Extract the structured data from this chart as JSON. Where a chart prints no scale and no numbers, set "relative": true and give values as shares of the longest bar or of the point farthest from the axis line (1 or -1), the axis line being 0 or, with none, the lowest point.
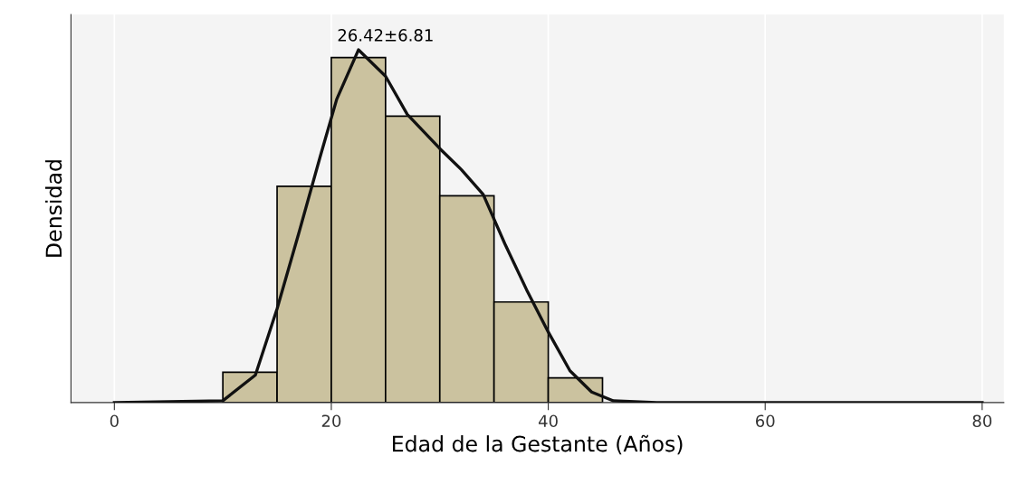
{
  "chart_data": {
    "type": "histogram",
    "relative": true,
    "xlabel": "Edad de la Gestante (Años)",
    "ylabel": "Densidad",
    "bins": [
      10,
      15,
      20,
      25,
      30,
      35,
      40,
      45
    ],
    "values": [
      0.086,
      0.613,
      0.978,
      0.812,
      0.586,
      0.285,
      0.07
    ],
    "color": "#cbc29f",
    "series": [
      {
        "type": "line",
        "color": "#111111",
        "x": [
          0,
          10,
          13,
          15,
          17,
          19,
          20.5,
          22.5,
          25,
          27,
          30,
          32,
          34,
          36,
          38,
          40,
          42,
          44,
          46,
          50,
          80
        ],
        "values": [
          0,
          0.005,
          0.078,
          0.266,
          0.48,
          0.7,
          0.86,
          1.0,
          0.925,
          0.817,
          0.72,
          0.66,
          0.59,
          0.45,
          0.32,
          0.2,
          0.09,
          0.03,
          0.005,
          0,
          0
        ]
      }
    ],
    "annotations": [
      "26.42±6.81"
    ],
    "xlim": [
      -4,
      82
    ],
    "xticks": [
      0,
      20,
      40,
      60,
      80
    ],
    "grid": true,
    "tick_labels": "x"
  }
}
